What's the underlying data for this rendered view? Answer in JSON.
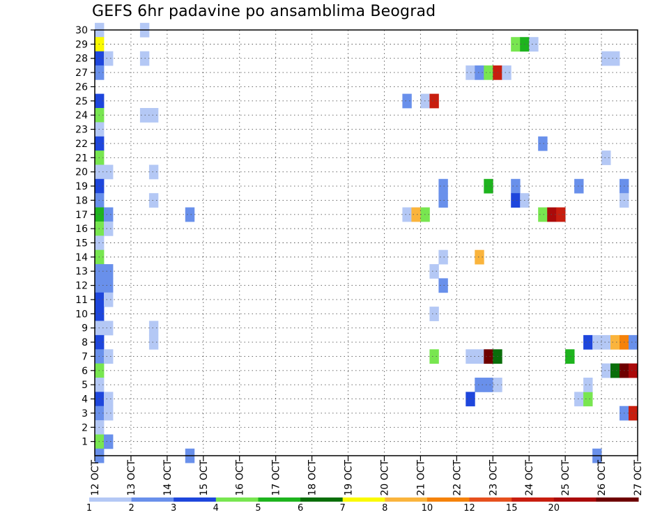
{
  "chart_data": {
    "type": "heatmap",
    "title": "GEFS 6hr padavine po ansamblima Beograd",
    "xlabel": "",
    "ylabel": "",
    "x_range_days": [
      12,
      27
    ],
    "x_tick_labels": [
      "12 OCT",
      "13 OCT",
      "14 OCT",
      "15 OCT",
      "16 OCT",
      "17 OCT",
      "18 OCT",
      "19 OCT",
      "20 OCT",
      "21 OCT",
      "22 OCT",
      "23 OCT",
      "24 OCT",
      "25 OCT",
      "26 OCT",
      "27 OCT"
    ],
    "y_tick_labels": [
      "1",
      "2",
      "3",
      "4",
      "5",
      "6",
      "7",
      "8",
      "9",
      "10",
      "11",
      "12",
      "13",
      "14",
      "15",
      "16",
      "17",
      "18",
      "19",
      "20",
      "21",
      "22",
      "23",
      "24",
      "25",
      "26",
      "27",
      "28",
      "29",
      "30"
    ],
    "ylim": [
      0,
      30
    ],
    "grid": true,
    "colorbar": {
      "bin_colors": [
        "#b4c8f5",
        "#6990eb",
        "#1e46dc",
        "#78e650",
        "#1eb41e",
        "#0a6e0a",
        "#fafa00",
        "#fab43c",
        "#f5820a",
        "#e6501e",
        "#c81e0f",
        "#aa0a0a",
        "#6e0000"
      ],
      "labels": [
        {
          "text": "1",
          "bin": 0
        },
        {
          "text": "2",
          "bin": 1
        },
        {
          "text": "3",
          "bin": 2
        },
        {
          "text": "4",
          "bin": 3
        },
        {
          "text": "5",
          "bin": 4
        },
        {
          "text": "6",
          "bin": 5
        },
        {
          "text": "7",
          "bin": 6
        },
        {
          "text": "8",
          "bin": 7
        },
        {
          "text": "10",
          "bin": 8
        },
        {
          "text": "12",
          "bin": 9
        },
        {
          "text": "15",
          "bin": 10
        },
        {
          "text": "20",
          "bin": 11
        }
      ]
    },
    "cells": [
      [
        12.0,
        30,
        0
      ],
      [
        12.0,
        29,
        6
      ],
      [
        12.0,
        28,
        2
      ],
      [
        12.25,
        28,
        0
      ],
      [
        12.0,
        27,
        1
      ],
      [
        12.0,
        25,
        2
      ],
      [
        12.0,
        24,
        3
      ],
      [
        12.0,
        23,
        0
      ],
      [
        12.0,
        22,
        2
      ],
      [
        12.0,
        21,
        3
      ],
      [
        12.0,
        20,
        0
      ],
      [
        12.25,
        20,
        0
      ],
      [
        12.0,
        19,
        2
      ],
      [
        12.0,
        18,
        1
      ],
      [
        12.0,
        17,
        4
      ],
      [
        12.25,
        17,
        1
      ],
      [
        12.0,
        16,
        3
      ],
      [
        12.25,
        16,
        0
      ],
      [
        12.0,
        15,
        0
      ],
      [
        12.0,
        14,
        3
      ],
      [
        12.0,
        13,
        1
      ],
      [
        12.25,
        13,
        1
      ],
      [
        12.0,
        12,
        1
      ],
      [
        12.25,
        12,
        1
      ],
      [
        12.0,
        11,
        2
      ],
      [
        12.25,
        11,
        0
      ],
      [
        12.0,
        10,
        2
      ],
      [
        12.0,
        9,
        0
      ],
      [
        12.25,
        9,
        0
      ],
      [
        12.0,
        8,
        2
      ],
      [
        12.0,
        7,
        1
      ],
      [
        12.25,
        7,
        0
      ],
      [
        12.0,
        6,
        3
      ],
      [
        12.0,
        5,
        0
      ],
      [
        12.0,
        4,
        2
      ],
      [
        12.25,
        4,
        0
      ],
      [
        12.0,
        3,
        1
      ],
      [
        12.25,
        3,
        0
      ],
      [
        12.0,
        2,
        0
      ],
      [
        12.0,
        1,
        3
      ],
      [
        12.25,
        1,
        1
      ],
      [
        12.0,
        0,
        1
      ],
      [
        13.25,
        30,
        0
      ],
      [
        13.25,
        28,
        0
      ],
      [
        13.25,
        24,
        0
      ],
      [
        13.5,
        24,
        0
      ],
      [
        13.5,
        20,
        0
      ],
      [
        13.5,
        18,
        0
      ],
      [
        13.5,
        9,
        0
      ],
      [
        13.5,
        8,
        0
      ],
      [
        14.5,
        17,
        1
      ],
      [
        14.5,
        0,
        1
      ],
      [
        20.5,
        25,
        1
      ],
      [
        21.0,
        25,
        0
      ],
      [
        21.25,
        25,
        10
      ],
      [
        20.5,
        17,
        0
      ],
      [
        20.75,
        17,
        7
      ],
      [
        21.0,
        17,
        3
      ],
      [
        21.5,
        19,
        1
      ],
      [
        21.5,
        18,
        1
      ],
      [
        21.5,
        14,
        0
      ],
      [
        21.25,
        13,
        0
      ],
      [
        21.5,
        12,
        1
      ],
      [
        21.25,
        10,
        0
      ],
      [
        21.25,
        7,
        3
      ],
      [
        22.25,
        27,
        0
      ],
      [
        22.5,
        27,
        1
      ],
      [
        22.75,
        27,
        3
      ],
      [
        23.0,
        27,
        10
      ],
      [
        23.25,
        27,
        0
      ],
      [
        22.75,
        19,
        4
      ],
      [
        22.5,
        14,
        7
      ],
      [
        22.25,
        7,
        0
      ],
      [
        22.5,
        7,
        0
      ],
      [
        22.75,
        7,
        12
      ],
      [
        23.0,
        7,
        5
      ],
      [
        22.5,
        5,
        1
      ],
      [
        22.75,
        5,
        1
      ],
      [
        23.0,
        5,
        0
      ],
      [
        22.25,
        4,
        2
      ],
      [
        23.5,
        29,
        3
      ],
      [
        23.75,
        29,
        4
      ],
      [
        24.0,
        29,
        0
      ],
      [
        23.5,
        19,
        1
      ],
      [
        23.5,
        18,
        2
      ],
      [
        23.75,
        18,
        0
      ],
      [
        24.25,
        22,
        1
      ],
      [
        24.25,
        17,
        3
      ],
      [
        24.5,
        17,
        11
      ],
      [
        24.75,
        17,
        10
      ],
      [
        25.0,
        7,
        4
      ],
      [
        25.25,
        19,
        1
      ],
      [
        25.25,
        4,
        0
      ],
      [
        25.5,
        4,
        3
      ],
      [
        25.5,
        5,
        0
      ],
      [
        25.5,
        8,
        2
      ],
      [
        25.75,
        8,
        0
      ],
      [
        26.0,
        8,
        0
      ],
      [
        26.25,
        8,
        7
      ],
      [
        26.5,
        8,
        8
      ],
      [
        26.75,
        8,
        1
      ],
      [
        26.0,
        28,
        0
      ],
      [
        26.25,
        28,
        0
      ],
      [
        26.0,
        21,
        0
      ],
      [
        26.5,
        19,
        1
      ],
      [
        26.5,
        18,
        0
      ],
      [
        26.0,
        6,
        0
      ],
      [
        26.25,
        6,
        5
      ],
      [
        26.5,
        6,
        12
      ],
      [
        26.75,
        6,
        11
      ],
      [
        26.5,
        3,
        1
      ],
      [
        26.75,
        3,
        10
      ],
      [
        25.75,
        0,
        1
      ]
    ]
  }
}
